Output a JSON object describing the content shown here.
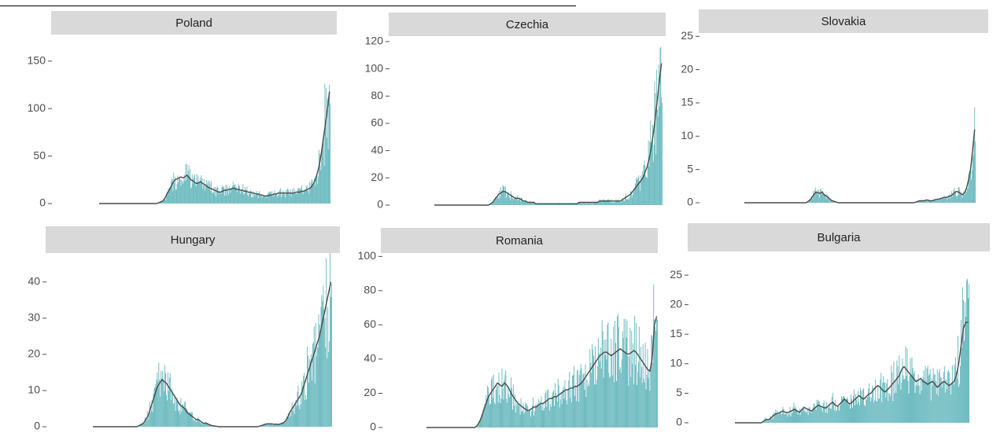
{
  "chart_data": [
    {
      "type": "bar",
      "title": "Poland",
      "yticks": [
        0,
        50,
        100,
        150
      ],
      "ylim": [
        0,
        178
      ],
      "values": [
        0,
        0,
        0,
        0,
        0,
        0,
        0,
        0,
        0,
        0,
        0,
        0,
        0,
        0,
        0,
        0,
        0,
        0,
        0,
        0,
        0,
        0,
        0,
        0,
        0,
        0,
        0,
        0,
        0,
        1,
        2,
        3,
        6,
        10,
        14,
        18,
        22,
        25,
        26,
        27,
        28,
        27,
        28,
        30,
        28,
        25,
        24,
        22,
        21,
        22,
        23,
        21,
        20,
        18,
        17,
        16,
        15,
        14,
        13,
        12,
        12,
        13,
        14,
        14,
        15,
        15,
        16,
        16,
        15,
        15,
        14,
        14,
        13,
        13,
        12,
        12,
        11,
        11,
        10,
        10,
        9,
        9,
        8,
        8,
        8,
        9,
        9,
        10,
        10,
        11,
        11,
        11,
        11,
        11,
        11,
        11,
        11,
        11,
        12,
        12,
        12,
        13,
        13,
        14,
        15,
        16,
        18,
        21,
        26,
        33,
        42,
        55,
        70,
        85,
        100,
        118
      ],
      "trend": [
        0,
        0,
        0,
        0,
        0,
        0,
        0,
        0,
        0,
        0,
        0,
        0,
        0,
        0,
        0,
        0,
        0,
        0,
        0,
        0,
        0,
        0,
        0,
        0,
        0,
        0,
        0,
        0,
        0,
        1,
        2,
        3,
        6,
        10,
        14,
        18,
        22,
        25,
        26,
        27,
        28,
        27,
        28,
        30,
        28,
        25,
        24,
        22,
        21,
        22,
        23,
        21,
        20,
        18,
        17,
        16,
        15,
        14,
        13,
        12,
        12,
        13,
        14,
        14,
        15,
        15,
        16,
        16,
        15,
        15,
        14,
        14,
        13,
        13,
        12,
        12,
        11,
        11,
        10,
        10,
        9,
        9,
        8,
        8,
        8,
        9,
        9,
        10,
        10,
        11,
        11,
        11,
        11,
        11,
        11,
        11,
        11,
        11,
        12,
        12,
        12,
        13,
        13,
        14,
        15,
        16,
        18,
        21,
        26,
        33,
        42,
        55,
        70,
        85,
        100,
        118
      ]
    },
    {
      "type": "bar",
      "title": "Czechia",
      "yticks": [
        0,
        20,
        40,
        60,
        80,
        100,
        120
      ],
      "ylim": [
        0,
        124
      ],
      "values": [
        0,
        0,
        0,
        0,
        0,
        0,
        0,
        0,
        0,
        0,
        0,
        0,
        0,
        0,
        0,
        0,
        0,
        0,
        0,
        0,
        0,
        0,
        0,
        0,
        0,
        0,
        1,
        2,
        4,
        6,
        8,
        9,
        10,
        10,
        9,
        8,
        7,
        6,
        5,
        5,
        5,
        4,
        3,
        3,
        2,
        2,
        2,
        2,
        1,
        1,
        1,
        1,
        1,
        1,
        1,
        1,
        1,
        1,
        1,
        1,
        1,
        1,
        1,
        1,
        1,
        1,
        1,
        1,
        1,
        2,
        2,
        2,
        2,
        2,
        2,
        2,
        2,
        2,
        2,
        3,
        3,
        3,
        3,
        3,
        3,
        3,
        3,
        3,
        3,
        3,
        4,
        5,
        6,
        7,
        8,
        10,
        12,
        14,
        16,
        18,
        20,
        24,
        28,
        34,
        42,
        52,
        64,
        78,
        92,
        104
      ],
      "trend": [
        0,
        0,
        0,
        0,
        0,
        0,
        0,
        0,
        0,
        0,
        0,
        0,
        0,
        0,
        0,
        0,
        0,
        0,
        0,
        0,
        0,
        0,
        0,
        0,
        0,
        0,
        1,
        2,
        4,
        6,
        8,
        9,
        10,
        10,
        9,
        8,
        7,
        6,
        5,
        5,
        5,
        4,
        3,
        3,
        2,
        2,
        2,
        2,
        1,
        1,
        1,
        1,
        1,
        1,
        1,
        1,
        1,
        1,
        1,
        1,
        1,
        1,
        1,
        1,
        1,
        1,
        1,
        1,
        1,
        2,
        2,
        2,
        2,
        2,
        2,
        2,
        2,
        2,
        2,
        3,
        3,
        3,
        3,
        3,
        3,
        3,
        3,
        3,
        3,
        3,
        4,
        5,
        6,
        7,
        8,
        10,
        12,
        14,
        16,
        18,
        20,
        24,
        28,
        34,
        42,
        52,
        64,
        78,
        92,
        104
      ]
    },
    {
      "type": "bar",
      "title": "Slovakia",
      "yticks": [
        0,
        5,
        10,
        15,
        20,
        25
      ],
      "ylim": [
        0,
        25.5
      ],
      "values": [
        0,
        0,
        0,
        0,
        0,
        0,
        0,
        0,
        0,
        0,
        0,
        0,
        0,
        0,
        0,
        0,
        0,
        0,
        0,
        0,
        0,
        0,
        0,
        0,
        0,
        0,
        0,
        0,
        0,
        0,
        0.2,
        0.4,
        0.8,
        1.3,
        1.6,
        1.5,
        1.4,
        1.6,
        1.2,
        1,
        0.8,
        0.5,
        0.3,
        0.2,
        0.1,
        0,
        0,
        0,
        0,
        0,
        0,
        0,
        0,
        0,
        0,
        0,
        0,
        0,
        0,
        0,
        0,
        0,
        0,
        0,
        0,
        0,
        0,
        0,
        0,
        0,
        0,
        0,
        0,
        0,
        0,
        0,
        0,
        0,
        0,
        0,
        0,
        0,
        0,
        0.1,
        0.2,
        0.3,
        0.3,
        0.3,
        0.4,
        0.4,
        0.3,
        0.3,
        0.4,
        0.5,
        0.5,
        0.6,
        0.7,
        0.8,
        0.8,
        0.9,
        1,
        1.2,
        1.5,
        1.7,
        1.6,
        1.4,
        1.2,
        1.5,
        2.2,
        3.5,
        5,
        8,
        11
      ],
      "trend": [
        0,
        0,
        0,
        0,
        0,
        0,
        0,
        0,
        0,
        0,
        0,
        0,
        0,
        0,
        0,
        0,
        0,
        0,
        0,
        0,
        0,
        0,
        0,
        0,
        0,
        0,
        0,
        0,
        0,
        0,
        0.2,
        0.4,
        0.8,
        1.3,
        1.6,
        1.5,
        1.4,
        1.6,
        1.2,
        1,
        0.8,
        0.5,
        0.3,
        0.2,
        0.1,
        0,
        0,
        0,
        0,
        0,
        0,
        0,
        0,
        0,
        0,
        0,
        0,
        0,
        0,
        0,
        0,
        0,
        0,
        0,
        0,
        0,
        0,
        0,
        0,
        0,
        0,
        0,
        0,
        0,
        0,
        0,
        0,
        0,
        0,
        0,
        0,
        0,
        0,
        0.1,
        0.2,
        0.3,
        0.3,
        0.3,
        0.4,
        0.4,
        0.3,
        0.3,
        0.4,
        0.5,
        0.5,
        0.6,
        0.7,
        0.8,
        0.8,
        0.9,
        1,
        1.2,
        1.5,
        1.7,
        1.6,
        1.4,
        1.2,
        1.5,
        2.2,
        3.5,
        5,
        8,
        11
      ]
    },
    {
      "type": "bar",
      "title": "Hungary",
      "yticks": [
        0,
        10,
        20,
        30,
        40
      ],
      "ylim": [
        0,
        48
      ],
      "values": [
        0,
        0,
        0,
        0,
        0,
        0,
        0,
        0,
        0,
        0,
        0,
        0,
        0,
        0,
        0,
        0,
        0,
        0,
        0,
        0.3,
        0.6,
        1,
        2,
        3,
        5,
        7,
        9,
        11,
        12,
        13,
        12.5,
        12,
        11,
        10,
        9,
        8,
        7,
        6,
        5.5,
        5,
        4,
        3.5,
        3,
        2.5,
        2,
        2,
        1.5,
        1,
        1,
        0.8,
        0.5,
        0.3,
        0.2,
        0.1,
        0,
        0,
        0,
        0,
        0,
        0,
        0,
        0,
        0,
        0,
        0,
        0,
        0,
        0,
        0,
        0,
        0,
        0,
        0.2,
        0.4,
        0.6,
        0.8,
        0.8,
        0.8,
        0.7,
        0.7,
        0.6,
        0.8,
        1,
        1.5,
        2.5,
        4,
        5,
        6,
        7,
        8,
        9,
        11,
        13,
        15,
        17,
        19,
        21,
        23,
        25,
        28,
        31,
        34,
        37,
        40
      ],
      "trend": [
        0,
        0,
        0,
        0,
        0,
        0,
        0,
        0,
        0,
        0,
        0,
        0,
        0,
        0,
        0,
        0,
        0,
        0,
        0,
        0.3,
        0.6,
        1,
        2,
        3,
        5,
        7,
        9,
        11,
        12,
        13,
        12.5,
        12,
        11,
        10,
        9,
        8,
        7,
        6,
        5.5,
        5,
        4,
        3.5,
        3,
        2.5,
        2,
        2,
        1.5,
        1,
        1,
        0.8,
        0.5,
        0.3,
        0.2,
        0.1,
        0,
        0,
        0,
        0,
        0,
        0,
        0,
        0,
        0,
        0,
        0,
        0,
        0,
        0,
        0,
        0,
        0,
        0,
        0.2,
        0.4,
        0.6,
        0.8,
        0.8,
        0.8,
        0.7,
        0.7,
        0.6,
        0.8,
        1,
        1.5,
        2.5,
        4,
        5,
        6,
        7,
        8,
        9,
        11,
        13,
        15,
        17,
        19,
        21,
        23,
        25,
        28,
        31,
        34,
        37,
        40
      ]
    },
    {
      "type": "bar",
      "title": "Romania",
      "yticks": [
        0,
        20,
        40,
        60,
        80,
        100
      ],
      "ylim": [
        0,
        102
      ],
      "values": [
        0,
        0,
        0,
        0,
        0,
        0,
        0,
        0,
        0,
        0,
        0,
        0,
        0,
        0,
        0,
        0,
        0,
        0,
        0,
        0,
        0,
        1,
        3,
        6,
        10,
        14,
        18,
        20,
        22,
        24,
        26,
        25,
        24,
        26,
        25,
        23,
        20,
        18,
        16,
        14,
        13,
        12,
        11,
        10,
        10,
        11,
        12,
        12,
        13,
        14,
        14,
        15,
        16,
        17,
        17,
        18,
        18,
        19,
        20,
        21,
        22,
        22,
        23,
        23,
        24,
        24,
        25,
        26,
        28,
        30,
        32,
        34,
        36,
        38,
        40,
        42,
        43,
        44,
        44,
        43,
        42,
        43,
        44,
        45,
        46,
        45,
        44,
        43,
        43,
        44,
        45,
        44,
        42,
        40,
        38,
        36,
        34,
        33,
        40,
        60,
        65
      ],
      "trend": [
        0,
        0,
        0,
        0,
        0,
        0,
        0,
        0,
        0,
        0,
        0,
        0,
        0,
        0,
        0,
        0,
        0,
        0,
        0,
        0,
        0,
        1,
        3,
        6,
        10,
        14,
        18,
        20,
        22,
        24,
        26,
        25,
        24,
        26,
        25,
        23,
        20,
        18,
        16,
        14,
        13,
        12,
        11,
        10,
        10,
        11,
        12,
        12,
        13,
        14,
        14,
        15,
        16,
        17,
        17,
        18,
        18,
        19,
        20,
        21,
        22,
        22,
        23,
        23,
        24,
        24,
        25,
        26,
        28,
        30,
        32,
        34,
        36,
        38,
        40,
        42,
        43,
        44,
        44,
        43,
        42,
        43,
        44,
        45,
        46,
        45,
        44,
        43,
        43,
        44,
        45,
        44,
        42,
        40,
        38,
        36,
        34,
        33,
        40,
        60,
        65
      ]
    },
    {
      "type": "bar",
      "title": "Bulgaria",
      "yticks": [
        0,
        5,
        10,
        15,
        20,
        25
      ],
      "ylim": [
        0,
        29
      ],
      "values": [
        0,
        0,
        0,
        0,
        0,
        0,
        0,
        0,
        0,
        0,
        0,
        0.3,
        0.6,
        0.5,
        0.8,
        1.2,
        1.5,
        1.6,
        1.8,
        2,
        1.8,
        1.7,
        1.9,
        2.1,
        2.3,
        2,
        1.8,
        2.2,
        2.6,
        2.4,
        2.2,
        2,
        2.3,
        2.7,
        3,
        2.8,
        2.6,
        2.5,
        2.8,
        3.2,
        3.5,
        3,
        2.8,
        3.2,
        3.6,
        4,
        3.6,
        3.2,
        3.4,
        3.8,
        4.2,
        4.6,
        4.3,
        4,
        4.4,
        4.8,
        5,
        5.5,
        6,
        6.3,
        6,
        5.5,
        5.2,
        5.6,
        6,
        6.5,
        7,
        7.5,
        8,
        9,
        9.5,
        9,
        8.5,
        8,
        7.5,
        7,
        7.2,
        7.5,
        7,
        6.8,
        6.5,
        6.8,
        7,
        6.5,
        6,
        6.4,
        6.8,
        7,
        6.6,
        6.3,
        6.6,
        7,
        8,
        10,
        13,
        16,
        17,
        17
      ],
      "trend": [
        0,
        0,
        0,
        0,
        0,
        0,
        0,
        0,
        0,
        0,
        0,
        0.3,
        0.6,
        0.5,
        0.8,
        1.2,
        1.5,
        1.6,
        1.8,
        2,
        1.8,
        1.7,
        1.9,
        2.1,
        2.3,
        2,
        1.8,
        2.2,
        2.6,
        2.4,
        2.2,
        2,
        2.3,
        2.7,
        3,
        2.8,
        2.6,
        2.5,
        2.8,
        3.2,
        3.5,
        3,
        2.8,
        3.2,
        3.6,
        4,
        3.6,
        3.2,
        3.4,
        3.8,
        4.2,
        4.6,
        4.3,
        4,
        4.4,
        4.8,
        5,
        5.5,
        6,
        6.3,
        6,
        5.5,
        5.2,
        5.6,
        6,
        6.5,
        7,
        7.5,
        8,
        9,
        9.5,
        9,
        8.5,
        8,
        7.5,
        7,
        7.2,
        7.5,
        7,
        6.8,
        6.5,
        6.8,
        7,
        6.5,
        6,
        6.4,
        6.8,
        7,
        6.6,
        6.3,
        6.6,
        7,
        8,
        10,
        13,
        16,
        17,
        17
      ]
    }
  ]
}
